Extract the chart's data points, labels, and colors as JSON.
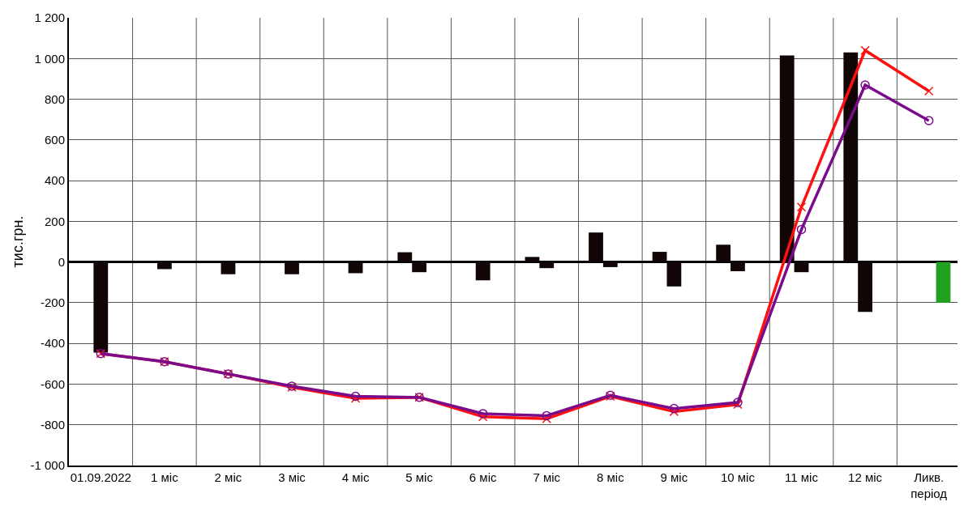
{
  "chart_data": {
    "type": "bar",
    "ylabel": "тис.грн.",
    "categories": [
      "01.09.2022",
      "1 міс",
      "2 міс",
      "3 міс",
      "4 міс",
      "5 міс",
      "6 міс",
      "7 міс",
      "8 міс",
      "9 міс",
      "10 міс",
      "11 міс",
      "12 міс",
      "Ликв.\nперіод"
    ],
    "series": [
      {
        "color": "#110505",
        "values": [
          null,
          null,
          null,
          null,
          null,
          48,
          null,
          25,
          145,
          50,
          85,
          1015,
          1030,
          null
        ]
      },
      {
        "color": "#110505",
        "values": [
          -445,
          -35,
          -60,
          -60,
          -55,
          -50,
          -90,
          -30,
          -25,
          -120,
          -45,
          -50,
          -245,
          null
        ]
      },
      {
        "color": "#22a022",
        "values": [
          null,
          null,
          null,
          null,
          null,
          null,
          null,
          null,
          null,
          null,
          null,
          null,
          null,
          -200
        ]
      },
      {
        "type": "line",
        "color": "#ff1010",
        "marker": "cross",
        "values": [
          -450,
          -490,
          -550,
          -615,
          -670,
          -665,
          -760,
          -770,
          -660,
          -735,
          -700,
          270,
          1040,
          840
        ]
      },
      {
        "type": "line",
        "color": "#7a0c8c",
        "marker": "circle",
        "values": [
          -450,
          -490,
          -550,
          -610,
          -660,
          -665,
          -745,
          -755,
          -655,
          -720,
          -690,
          160,
          870,
          695
        ]
      }
    ],
    "ylim": [
      -1000,
      1200
    ],
    "yticks": [
      {
        "value": -1000,
        "label": "-1 000"
      },
      -800,
      -600,
      -400,
      -200,
      0,
      200,
      400,
      600,
      800,
      {
        "value": 1000,
        "label": "1 000"
      },
      {
        "value": 1200,
        "label": "1 200"
      }
    ],
    "grid": true
  }
}
